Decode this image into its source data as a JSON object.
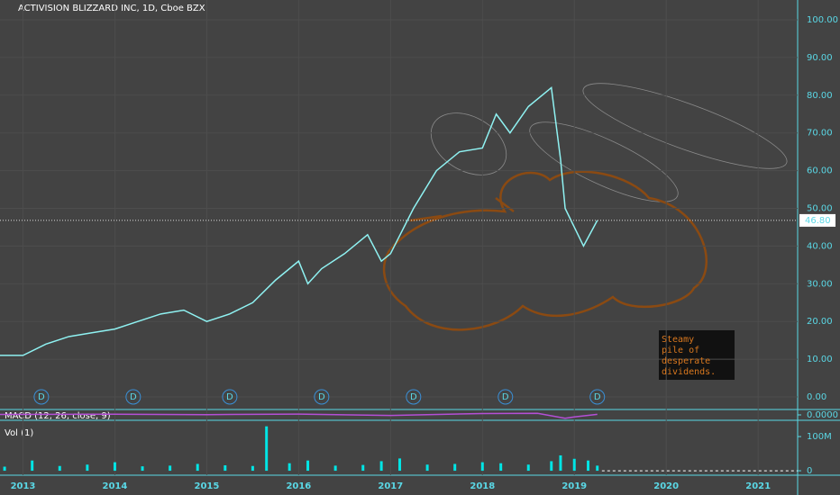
{
  "chart_data": [
    {
      "type": "line",
      "title": "ACTIVISION BLIZZARD INC, 1D, Cboe BZX",
      "color": "#8ff2f2",
      "x": [
        2012.75,
        2013.0,
        2013.25,
        2013.5,
        2013.75,
        2014.0,
        2014.25,
        2014.5,
        2014.75,
        2015.0,
        2015.25,
        2015.5,
        2015.75,
        2016.0,
        2016.1,
        2016.25,
        2016.5,
        2016.75,
        2016.9,
        2017.0,
        2017.25,
        2017.5,
        2017.75,
        2018.0,
        2018.15,
        2018.3,
        2018.5,
        2018.75,
        2018.85,
        2018.9,
        2019.0,
        2019.1,
        2019.25
      ],
      "values": [
        11,
        11,
        14,
        16,
        17,
        18,
        20,
        22,
        23,
        20,
        22,
        25,
        31,
        36,
        30,
        34,
        38,
        43,
        36,
        38,
        50,
        60,
        65,
        66,
        75,
        70,
        77,
        82,
        63,
        50,
        45,
        40,
        46.8
      ],
      "xlim": [
        2012.75,
        2021.43
      ],
      "xticks": [
        2013,
        2014,
        2015,
        2016,
        2017,
        2018,
        2019,
        2020,
        2021
      ],
      "ylim": [
        -3.34,
        105.25
      ],
      "yticks": [
        {
          "value": 0,
          "label": "0.00"
        },
        {
          "value": 10,
          "label": "10.00"
        },
        {
          "value": 20,
          "label": "20.00"
        },
        {
          "value": 30,
          "label": "30.00"
        },
        {
          "value": 40,
          "label": "40.00"
        },
        {
          "value": 50,
          "label": "50.00"
        },
        {
          "value": 60,
          "label": "60.00"
        },
        {
          "value": 70,
          "label": "70.00"
        },
        {
          "value": 80,
          "label": "80.00"
        },
        {
          "value": 90,
          "label": "90.00"
        },
        {
          "value": 100,
          "label": "100.00"
        }
      ],
      "last_price": {
        "value": 46.8,
        "label": "46.80"
      },
      "dividends": {
        "x": [
          2013.2,
          2014.2,
          2015.25,
          2016.25,
          2017.25,
          2018.25,
          2019.25
        ],
        "label": "D"
      },
      "note": [
        "Steamy",
        "pile of",
        "desperate",
        "dividends."
      ]
    },
    {
      "type": "line",
      "title": "MACD (12, 26, close, 9)",
      "color": "#b44fd6",
      "x": [
        2012.75,
        2014.0,
        2015.0,
        2016.0,
        2017.0,
        2018.0,
        2018.6,
        2018.9,
        2019.0,
        2019.25
      ],
      "values": [
        0.3,
        0.5,
        0.2,
        0.6,
        -0.4,
        1.0,
        1.2,
        -2.5,
        -1.5,
        0.4
      ],
      "ylim": [
        -4,
        4
      ],
      "yticks": [
        {
          "value": 0,
          "label": "0.0000"
        }
      ]
    },
    {
      "type": "bar",
      "title": "Vol (1)",
      "color": "#00e5e5",
      "x": [
        2012.8,
        2013.1,
        2013.4,
        2013.7,
        2014.0,
        2014.3,
        2014.6,
        2014.9,
        2015.2,
        2015.5,
        2015.65,
        2015.9,
        2016.1,
        2016.4,
        2016.7,
        2016.9,
        2017.1,
        2017.4,
        2017.7,
        2018.0,
        2018.2,
        2018.5,
        2018.75,
        2018.85,
        2019.0,
        2019.15,
        2019.25
      ],
      "values": [
        12000000,
        30000000,
        14000000,
        18000000,
        25000000,
        13000000,
        15000000,
        20000000,
        16000000,
        14000000,
        130000000,
        22000000,
        30000000,
        15000000,
        17000000,
        28000000,
        36000000,
        18000000,
        20000000,
        25000000,
        22000000,
        18000000,
        28000000,
        45000000,
        35000000,
        30000000,
        15000000
      ],
      "ylim": [
        -13000000,
        145000000
      ],
      "yticks": [
        0,
        {
          "value": 100000000,
          "label": "100M"
        }
      ]
    }
  ]
}
